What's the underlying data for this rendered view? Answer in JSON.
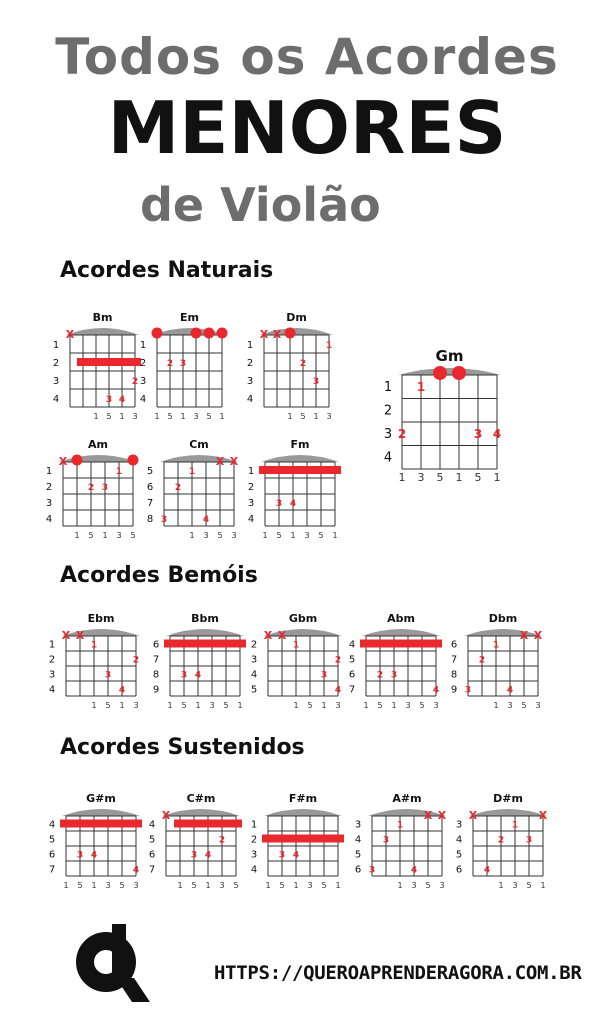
{
  "title": {
    "line1": "Todos os Acordes",
    "line2": "MENORES",
    "line3": "de Violão"
  },
  "sections": [
    {
      "title": "Acordes Naturais"
    },
    {
      "title": "Acordes Bemóis"
    },
    {
      "title": "Acordes Sustenidos"
    }
  ],
  "colors": {
    "marker": "#e8282d",
    "grid": "#333333",
    "nut": "#999999",
    "text": "#111111"
  },
  "chords": [
    {
      "name": "Bm",
      "section": 0,
      "fret_labels": [
        "1",
        "2",
        "3",
        "4"
      ],
      "fingers": [
        {
          "s": 3,
          "f": 3,
          "n": "3"
        },
        {
          "s": 4,
          "f": 3,
          "n": "4"
        },
        {
          "s": 5,
          "f": 2,
          "n": "2"
        }
      ],
      "barre": {
        "fret": 1,
        "from": 1,
        "to": 5
      },
      "open": [],
      "mute": [
        0
      ],
      "bass": [
        "1",
        "5",
        "1",
        "3"
      ]
    },
    {
      "name": "Em",
      "section": 0,
      "fret_labels": [
        "1",
        "2",
        "3",
        "4"
      ],
      "fingers": [
        {
          "s": 1,
          "f": 1,
          "n": "2"
        },
        {
          "s": 2,
          "f": 1,
          "n": "3"
        }
      ],
      "barre": null,
      "open": [
        0,
        3,
        4,
        5
      ],
      "mute": [],
      "bass": [
        "1",
        "5",
        "1",
        "3",
        "5",
        "1"
      ]
    },
    {
      "name": "Dm",
      "section": 0,
      "fret_labels": [
        "1",
        "2",
        "3",
        "4"
      ],
      "fingers": [
        {
          "s": 5,
          "f": 0,
          "n": "1"
        },
        {
          "s": 3,
          "f": 1,
          "n": "2"
        },
        {
          "s": 4,
          "f": 2,
          "n": "3"
        }
      ],
      "barre": null,
      "open": [
        2
      ],
      "mute": [
        0,
        1
      ],
      "bass": [
        "1",
        "5",
        "1",
        "3"
      ]
    },
    {
      "name": "Gm",
      "section": 0,
      "fret_labels": [
        "1",
        "2",
        "3",
        "4"
      ],
      "fingers": [
        {
          "s": 1,
          "f": 0,
          "n": "1"
        },
        {
          "s": 0,
          "f": 2,
          "n": "2"
        },
        {
          "s": 4,
          "f": 2,
          "n": "3"
        },
        {
          "s": 5,
          "f": 2,
          "n": "4"
        }
      ],
      "barre": null,
      "open": [
        2,
        3
      ],
      "mute": [],
      "bass": [
        "1",
        "3",
        "5",
        "1",
        "5",
        "1"
      ]
    },
    {
      "name": "Am",
      "section": 0,
      "fret_labels": [
        "1",
        "2",
        "3",
        "4"
      ],
      "fingers": [
        {
          "s": 4,
          "f": 0,
          "n": "1"
        },
        {
          "s": 2,
          "f": 1,
          "n": "2"
        },
        {
          "s": 3,
          "f": 1,
          "n": "3"
        }
      ],
      "barre": null,
      "open": [
        1,
        5
      ],
      "mute": [
        0
      ],
      "bass": [
        "1",
        "5",
        "1",
        "3",
        "5"
      ]
    },
    {
      "name": "Cm",
      "section": 0,
      "fret_labels": [
        "5",
        "6",
        "7",
        "8"
      ],
      "fingers": [
        {
          "s": 2,
          "f": 0,
          "n": "1"
        },
        {
          "s": 1,
          "f": 1,
          "n": "2"
        },
        {
          "s": 0,
          "f": 3,
          "n": "3"
        },
        {
          "s": 3,
          "f": 3,
          "n": "4"
        }
      ],
      "barre": null,
      "open": [],
      "mute": [
        4,
        5
      ],
      "bass": [
        "1",
        "3",
        "5",
        "3"
      ]
    },
    {
      "name": "Fm",
      "section": 0,
      "fret_labels": [
        "1",
        "2",
        "3",
        "4"
      ],
      "fingers": [
        {
          "s": 1,
          "f": 2,
          "n": "3"
        },
        {
          "s": 2,
          "f": 2,
          "n": "4"
        }
      ],
      "barre": {
        "fret": 0,
        "from": 0,
        "to": 5
      },
      "open": [],
      "mute": [],
      "bass": [
        "1",
        "5",
        "1",
        "3",
        "5",
        "1"
      ]
    },
    {
      "name": "Ebm",
      "section": 1,
      "fret_labels": [
        "1",
        "2",
        "3",
        "4"
      ],
      "fingers": [
        {
          "s": 2,
          "f": 0,
          "n": "1"
        },
        {
          "s": 3,
          "f": 2,
          "n": "3"
        },
        {
          "s": 4,
          "f": 3,
          "n": "4"
        },
        {
          "s": 5,
          "f": 1,
          "n": "2"
        }
      ],
      "barre": null,
      "open": [],
      "mute": [
        0,
        1
      ],
      "bass": [
        "1",
        "5",
        "1",
        "3"
      ]
    },
    {
      "name": "Bbm",
      "section": 1,
      "fret_labels": [
        "6",
        "7",
        "8",
        "9"
      ],
      "fingers": [
        {
          "s": 1,
          "f": 2,
          "n": "3"
        },
        {
          "s": 2,
          "f": 2,
          "n": "4"
        }
      ],
      "barre": {
        "fret": 0,
        "from": 0,
        "to": 5
      },
      "open": [],
      "mute": [],
      "bass": [
        "1",
        "5",
        "1",
        "3",
        "5",
        "1"
      ]
    },
    {
      "name": "Gbm",
      "section": 1,
      "fret_labels": [
        "2",
        "3",
        "4",
        "5"
      ],
      "fingers": [
        {
          "s": 2,
          "f": 0,
          "n": "1"
        },
        {
          "s": 4,
          "f": 2,
          "n": "3"
        },
        {
          "s": 5,
          "f": 3,
          "n": "4"
        },
        {
          "s": 5,
          "f": 1,
          "n": "2"
        }
      ],
      "barre": null,
      "open": [],
      "mute": [
        0,
        1
      ],
      "bass": [
        "1",
        "5",
        "1",
        "3"
      ]
    },
    {
      "name": "Abm",
      "section": 1,
      "fret_labels": [
        "4",
        "5",
        "6",
        "7"
      ],
      "fingers": [
        {
          "s": 1,
          "f": 2,
          "n": "2"
        },
        {
          "s": 2,
          "f": 2,
          "n": "3"
        },
        {
          "s": 5,
          "f": 3,
          "n": "4"
        }
      ],
      "barre": {
        "fret": 0,
        "from": 0,
        "to": 5
      },
      "open": [],
      "mute": [],
      "bass": [
        "1",
        "5",
        "1",
        "3",
        "5",
        "3"
      ]
    },
    {
      "name": "Dbm",
      "section": 1,
      "fret_labels": [
        "6",
        "7",
        "8",
        "9"
      ],
      "fingers": [
        {
          "s": 2,
          "f": 0,
          "n": "1"
        },
        {
          "s": 1,
          "f": 1,
          "n": "2"
        },
        {
          "s": 0,
          "f": 3,
          "n": "3"
        },
        {
          "s": 3,
          "f": 3,
          "n": "4"
        }
      ],
      "barre": null,
      "open": [],
      "mute": [
        4,
        5
      ],
      "bass": [
        "1",
        "3",
        "5",
        "3"
      ]
    },
    {
      "name": "G#m",
      "section": 2,
      "fret_labels": [
        "4",
        "5",
        "6",
        "7"
      ],
      "fingers": [
        {
          "s": 1,
          "f": 2,
          "n": "3"
        },
        {
          "s": 2,
          "f": 2,
          "n": "4"
        },
        {
          "s": 5,
          "f": 3,
          "n": "4"
        }
      ],
      "barre": {
        "fret": 0,
        "from": 0,
        "to": 5
      },
      "open": [],
      "mute": [],
      "bass": [
        "1",
        "5",
        "1",
        "3",
        "5",
        "3"
      ]
    },
    {
      "name": "C#m",
      "section": 2,
      "fret_labels": [
        "4",
        "5",
        "6",
        "7"
      ],
      "fingers": [
        {
          "s": 2,
          "f": 2,
          "n": "3"
        },
        {
          "s": 3,
          "f": 2,
          "n": "4"
        },
        {
          "s": 4,
          "f": 1,
          "n": "2"
        }
      ],
      "barre": {
        "fret": 0,
        "from": 1,
        "to": 5
      },
      "open": [],
      "mute": [
        0
      ],
      "bass": [
        "1",
        "5",
        "1",
        "3",
        "5"
      ]
    },
    {
      "name": "F#m",
      "section": 2,
      "fret_labels": [
        "1",
        "2",
        "3",
        "4"
      ],
      "fingers": [
        {
          "s": 1,
          "f": 2,
          "n": "3"
        },
        {
          "s": 2,
          "f": 2,
          "n": "4"
        }
      ],
      "barre": {
        "fret": 1,
        "from": 0,
        "to": 5
      },
      "open": [],
      "mute": [],
      "bass": [
        "1",
        "5",
        "1",
        "3",
        "5",
        "1"
      ]
    },
    {
      "name": "A#m",
      "section": 2,
      "fret_labels": [
        "3",
        "4",
        "5",
        "6"
      ],
      "fingers": [
        {
          "s": 2,
          "f": 0,
          "n": "1"
        },
        {
          "s": 1,
          "f": 1,
          "n": "3"
        },
        {
          "s": 0,
          "f": 3,
          "n": "3"
        },
        {
          "s": 3,
          "f": 3,
          "n": "4"
        }
      ],
      "barre": null,
      "open": [],
      "mute": [
        4,
        5
      ],
      "bass": [
        "1",
        "3",
        "5",
        "3"
      ]
    },
    {
      "name": "D#m",
      "section": 2,
      "fret_labels": [
        "3",
        "4",
        "5",
        "6"
      ],
      "fingers": [
        {
          "s": 3,
          "f": 0,
          "n": "1"
        },
        {
          "s": 2,
          "f": 1,
          "n": "2"
        },
        {
          "s": 4,
          "f": 1,
          "n": "3"
        },
        {
          "s": 1,
          "f": 3,
          "n": "4"
        }
      ],
      "barre": null,
      "open": [],
      "mute": [
        0,
        5
      ],
      "bass": [
        "1",
        "3",
        "5",
        "1"
      ]
    }
  ],
  "footer": {
    "url": "HTTPS://QUEROAPRENDERAGORA.COM.BR"
  }
}
